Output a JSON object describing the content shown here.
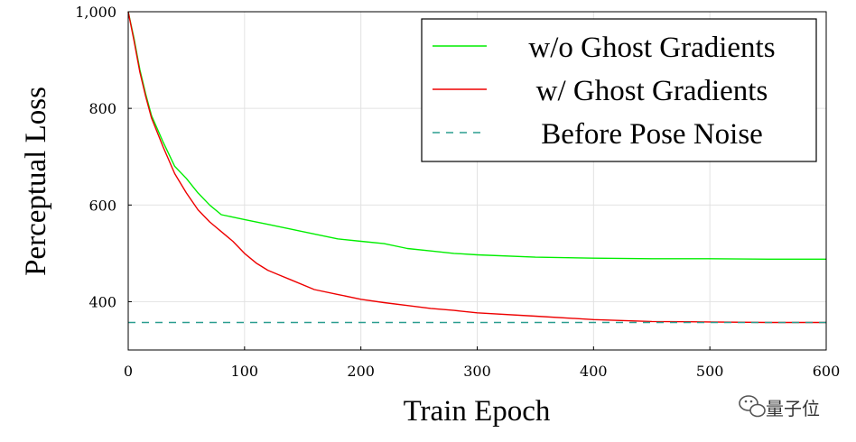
{
  "chart_data": {
    "type": "line",
    "xlabel": "Train Epoch",
    "ylabel": "Perceptual Loss",
    "xlim": [
      0,
      600
    ],
    "ylim": [
      300,
      1000
    ],
    "xticks": [
      0,
      100,
      200,
      300,
      400,
      500,
      600
    ],
    "xtick_labels": [
      "0",
      "100",
      "200",
      "300",
      "400",
      "500",
      "600"
    ],
    "yticks": [
      400,
      600,
      800,
      1000
    ],
    "ytick_labels": [
      "400",
      "600",
      "800",
      "1,000"
    ],
    "grid": true,
    "legend_position": "top-right",
    "series": [
      {
        "name": "w/o Ghost Gradients",
        "color": "#00ee00",
        "style": "solid",
        "x": [
          0,
          5,
          10,
          15,
          20,
          30,
          40,
          50,
          60,
          70,
          80,
          90,
          100,
          120,
          140,
          160,
          180,
          200,
          220,
          240,
          260,
          280,
          300,
          350,
          400,
          450,
          500,
          550,
          600
        ],
        "y": [
          1000,
          945,
          880,
          830,
          785,
          730,
          680,
          655,
          625,
          600,
          580,
          575,
          570,
          560,
          550,
          540,
          530,
          525,
          520,
          510,
          505,
          500,
          497,
          492,
          490,
          489,
          489,
          488,
          488
        ]
      },
      {
        "name": "w/ Ghost Gradients",
        "color": "#ee0000",
        "style": "solid",
        "x": [
          0,
          5,
          10,
          15,
          20,
          30,
          40,
          50,
          60,
          70,
          80,
          90,
          100,
          110,
          120,
          130,
          140,
          160,
          180,
          200,
          220,
          240,
          260,
          280,
          300,
          350,
          400,
          450,
          500,
          550,
          600
        ],
        "y": [
          1000,
          940,
          875,
          825,
          780,
          720,
          665,
          625,
          590,
          565,
          545,
          525,
          500,
          480,
          465,
          455,
          445,
          425,
          415,
          405,
          398,
          392,
          386,
          382,
          377,
          370,
          363,
          359,
          358,
          357,
          357
        ]
      },
      {
        "name": "Before Pose Noise",
        "color": "#2a9d8f",
        "style": "dashed",
        "x": [
          0,
          600
        ],
        "y": [
          357,
          357
        ]
      }
    ]
  },
  "watermark": {
    "text": "量子位",
    "icon": "wechat-icon"
  }
}
